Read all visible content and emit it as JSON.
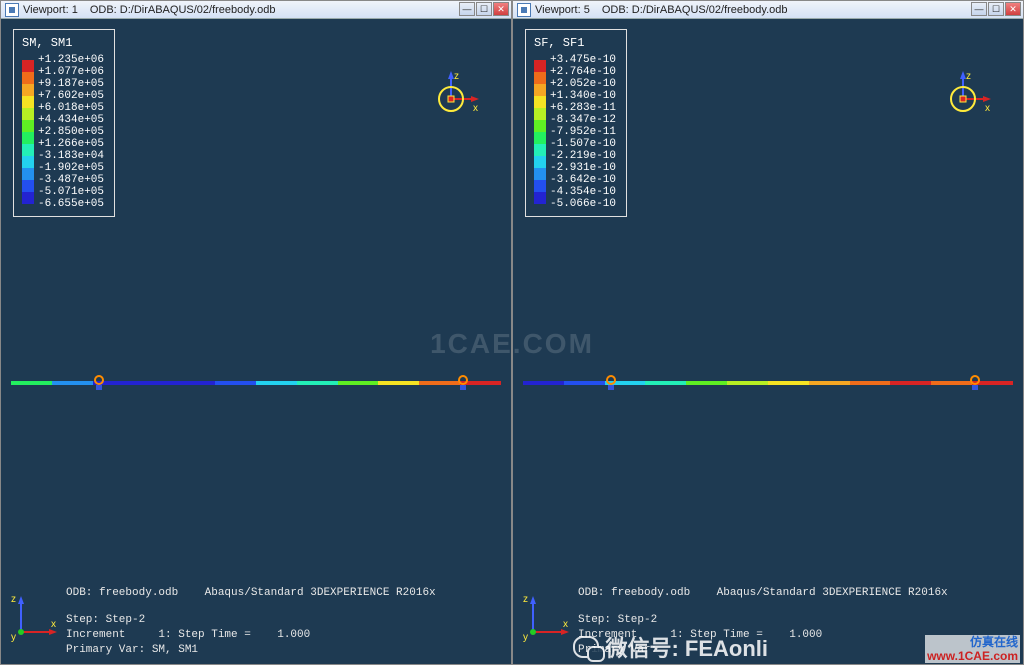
{
  "watermark_center": "1CAE.COM",
  "corner_brand_cn": "仿真在线",
  "corner_brand_url": "www.1CAE.com",
  "wechat_text": "微信号: FEAonli",
  "panes": [
    {
      "viewport_label": "Viewport: 1",
      "odb_label": "ODB: D:/DirABAQUS/02/freebody.odb",
      "legend": {
        "title": "SM, SM1",
        "values": [
          "+1.235e+06",
          "+1.077e+06",
          "+9.187e+05",
          "+7.602e+05",
          "+6.018e+05",
          "+4.434e+05",
          "+2.850e+05",
          "+1.266e+05",
          "-3.183e+04",
          "-1.902e+05",
          "-3.487e+05",
          "-5.071e+05",
          "-6.655e+05"
        ],
        "colors": [
          "#d82424",
          "#ef6c1a",
          "#f5a623",
          "#f5e323",
          "#b7ef23",
          "#5fef23",
          "#23ef5f",
          "#23efb7",
          "#23d1ef",
          "#2390ef",
          "#234fef",
          "#2323d1"
        ]
      },
      "beam_colors": [
        "#23ef5f",
        "#2390ef",
        "#2323d1",
        "#2323d1",
        "#2323d1",
        "#234fef",
        "#23d1ef",
        "#23efb7",
        "#5fef23",
        "#f5e323",
        "#ef6c1a",
        "#d82424"
      ],
      "footer": {
        "odb_line": "ODB: freebody.odb    Abaqus/Standard 3DEXPERIENCE R2016x",
        "step_line": "Step: Step-2",
        "inc_line": "Increment     1: Step Time =    1.000",
        "var_line": "Primary Var: SM, SM1"
      }
    },
    {
      "viewport_label": "Viewport: 5",
      "odb_label": "ODB: D:/DirABAQUS/02/freebody.odb",
      "legend": {
        "title": "SF, SF1",
        "values": [
          "+3.475e-10",
          "+2.764e-10",
          "+2.052e-10",
          "+1.340e-10",
          "+6.283e-11",
          "-8.347e-12",
          "-7.952e-11",
          "-1.507e-10",
          "-2.219e-10",
          "-2.931e-10",
          "-3.642e-10",
          "-4.354e-10",
          "-5.066e-10"
        ],
        "colors": [
          "#d82424",
          "#ef6c1a",
          "#f5a623",
          "#f5e323",
          "#b7ef23",
          "#5fef23",
          "#23ef5f",
          "#23efb7",
          "#23d1ef",
          "#2390ef",
          "#234fef",
          "#2323d1"
        ]
      },
      "beam_colors": [
        "#2323d1",
        "#234fef",
        "#23d1ef",
        "#23efb7",
        "#5fef23",
        "#b7ef23",
        "#f5e323",
        "#f5a623",
        "#ef6c1a",
        "#d82424",
        "#ef6c1a",
        "#d82424"
      ],
      "footer": {
        "odb_line": "ODB: freebody.odb    Abaqus/Standard 3DEXPERIENCE R2016x",
        "step_line": "Step: Step-2",
        "inc_line": "Increment     1: Step Time =    1.000",
        "var_line": "Primary Var:"
      }
    }
  ],
  "triad": {
    "x_label": "x",
    "y_label": "y",
    "z_label": "z",
    "x_color": "#d82424",
    "y_color": "#23cc23",
    "z_color": "#4060ff"
  }
}
